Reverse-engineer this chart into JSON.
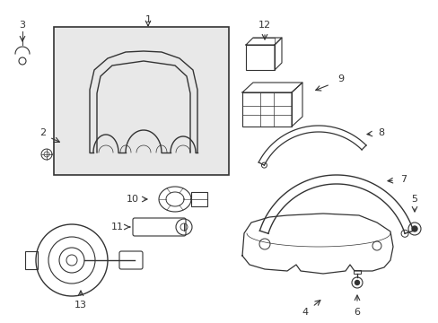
{
  "background_color": "#ffffff",
  "line_color": "#333333",
  "box_fill": "#e8e8e8",
  "figsize": [
    4.89,
    3.6
  ],
  "dpi": 100
}
